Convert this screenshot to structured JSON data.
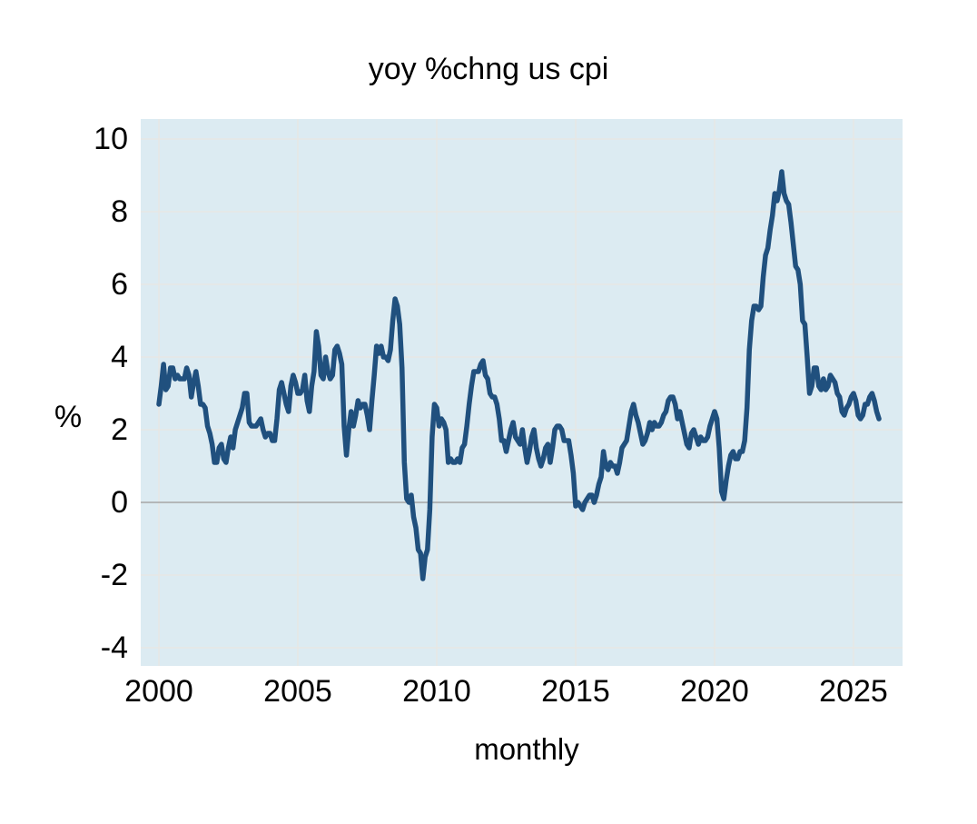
{
  "title": "yoy %chng us cpi",
  "colors": {
    "page_background": "#ffffff",
    "plot_background": "#dcebf2",
    "line": "#20507e",
    "gridline": "#e9e6e2",
    "zero_line": "#a6a6a6",
    "text": "#000000"
  },
  "chart_data": {
    "type": "line",
    "title": "yoy %chng us cpi",
    "xlabel": "monthly",
    "ylabel": "%",
    "x_ticks": [
      2000,
      2005,
      2010,
      2015,
      2020,
      2025
    ],
    "y_ticks": [
      10,
      8,
      6,
      4,
      2,
      0,
      -2,
      -4
    ],
    "ylim": [
      -4.5,
      10.55
    ],
    "xlim_years": [
      1999.35,
      2026.75
    ],
    "grid": true,
    "legend": false,
    "zero_line": true,
    "series": [
      {
        "name": "us cpi yoy %chng",
        "start": "2000-01",
        "frequency": "monthly",
        "values": [
          2.7,
          3.2,
          3.8,
          3.1,
          3.2,
          3.7,
          3.7,
          3.4,
          3.5,
          3.4,
          3.4,
          3.4,
          3.7,
          3.5,
          2.9,
          3.3,
          3.6,
          3.2,
          2.7,
          2.7,
          2.6,
          2.1,
          1.9,
          1.6,
          1.1,
          1.1,
          1.5,
          1.6,
          1.2,
          1.1,
          1.5,
          1.8,
          1.5,
          2.0,
          2.2,
          2.4,
          2.6,
          3.0,
          3.0,
          2.2,
          2.1,
          2.1,
          2.1,
          2.2,
          2.3,
          2.0,
          1.8,
          1.9,
          1.9,
          1.7,
          1.7,
          2.3,
          3.1,
          3.3,
          3.0,
          2.7,
          2.5,
          3.2,
          3.5,
          3.3,
          3.0,
          3.0,
          3.1,
          3.5,
          2.8,
          2.5,
          3.2,
          3.6,
          4.7,
          4.3,
          3.5,
          3.4,
          4.0,
          3.6,
          3.4,
          3.5,
          4.2,
          4.3,
          4.1,
          3.8,
          2.1,
          1.3,
          2.0,
          2.5,
          2.1,
          2.4,
          2.8,
          2.6,
          2.7,
          2.7,
          2.4,
          2.0,
          2.8,
          3.5,
          4.3,
          4.1,
          4.3,
          4.0,
          4.0,
          3.9,
          4.2,
          5.0,
          5.6,
          5.4,
          4.9,
          3.7,
          1.1,
          0.1,
          0.0,
          0.2,
          -0.4,
          -0.7,
          -1.3,
          -1.4,
          -2.1,
          -1.5,
          -1.3,
          -0.2,
          1.8,
          2.7,
          2.6,
          2.1,
          2.3,
          2.2,
          2.0,
          1.1,
          1.2,
          1.1,
          1.1,
          1.2,
          1.1,
          1.5,
          1.6,
          2.1,
          2.7,
          3.2,
          3.6,
          3.6,
          3.6,
          3.8,
          3.9,
          3.5,
          3.4,
          3.0,
          2.9,
          2.9,
          2.7,
          2.3,
          1.7,
          1.7,
          1.4,
          1.7,
          2.0,
          2.2,
          1.8,
          1.7,
          1.6,
          2.0,
          1.5,
          1.1,
          1.4,
          1.8,
          2.0,
          1.5,
          1.2,
          1.0,
          1.2,
          1.5,
          1.6,
          1.1,
          1.5,
          2.0,
          2.1,
          2.1,
          2.0,
          1.7,
          1.7,
          1.7,
          1.3,
          0.8,
          -0.1,
          0.0,
          -0.1,
          -0.2,
          0.0,
          0.1,
          0.2,
          0.2,
          0.0,
          0.2,
          0.5,
          0.7,
          1.4,
          1.0,
          0.9,
          1.1,
          1.0,
          1.0,
          0.8,
          1.1,
          1.5,
          1.6,
          1.7,
          2.1,
          2.5,
          2.7,
          2.4,
          2.2,
          1.9,
          1.6,
          1.7,
          1.9,
          2.2,
          2.0,
          2.2,
          2.1,
          2.1,
          2.2,
          2.4,
          2.5,
          2.8,
          2.9,
          2.9,
          2.7,
          2.3,
          2.5,
          2.2,
          1.9,
          1.6,
          1.5,
          1.9,
          2.0,
          1.8,
          1.6,
          1.8,
          1.7,
          1.7,
          1.8,
          2.1,
          2.3,
          2.5,
          2.3,
          1.5,
          0.3,
          0.1,
          0.6,
          1.0,
          1.3,
          1.4,
          1.2,
          1.2,
          1.4,
          1.4,
          1.7,
          2.6,
          4.2,
          5.0,
          5.4,
          5.4,
          5.3,
          5.4,
          6.2,
          6.8,
          7.0,
          7.5,
          7.9,
          8.5,
          8.3,
          8.6,
          9.1,
          8.5,
          8.3,
          8.2,
          7.7,
          7.1,
          6.5,
          6.4,
          6.0,
          5.0,
          4.9,
          4.0,
          3.0,
          3.2,
          3.7,
          3.7,
          3.2,
          3.1,
          3.4,
          3.1,
          3.2,
          3.5,
          3.4,
          3.3,
          3.0,
          2.9,
          2.5,
          2.4,
          2.6,
          2.7,
          2.9,
          3.0,
          2.8,
          2.4,
          2.3,
          2.4,
          2.7,
          2.7,
          2.9,
          3.0,
          2.8,
          2.5,
          2.3
        ]
      }
    ]
  }
}
